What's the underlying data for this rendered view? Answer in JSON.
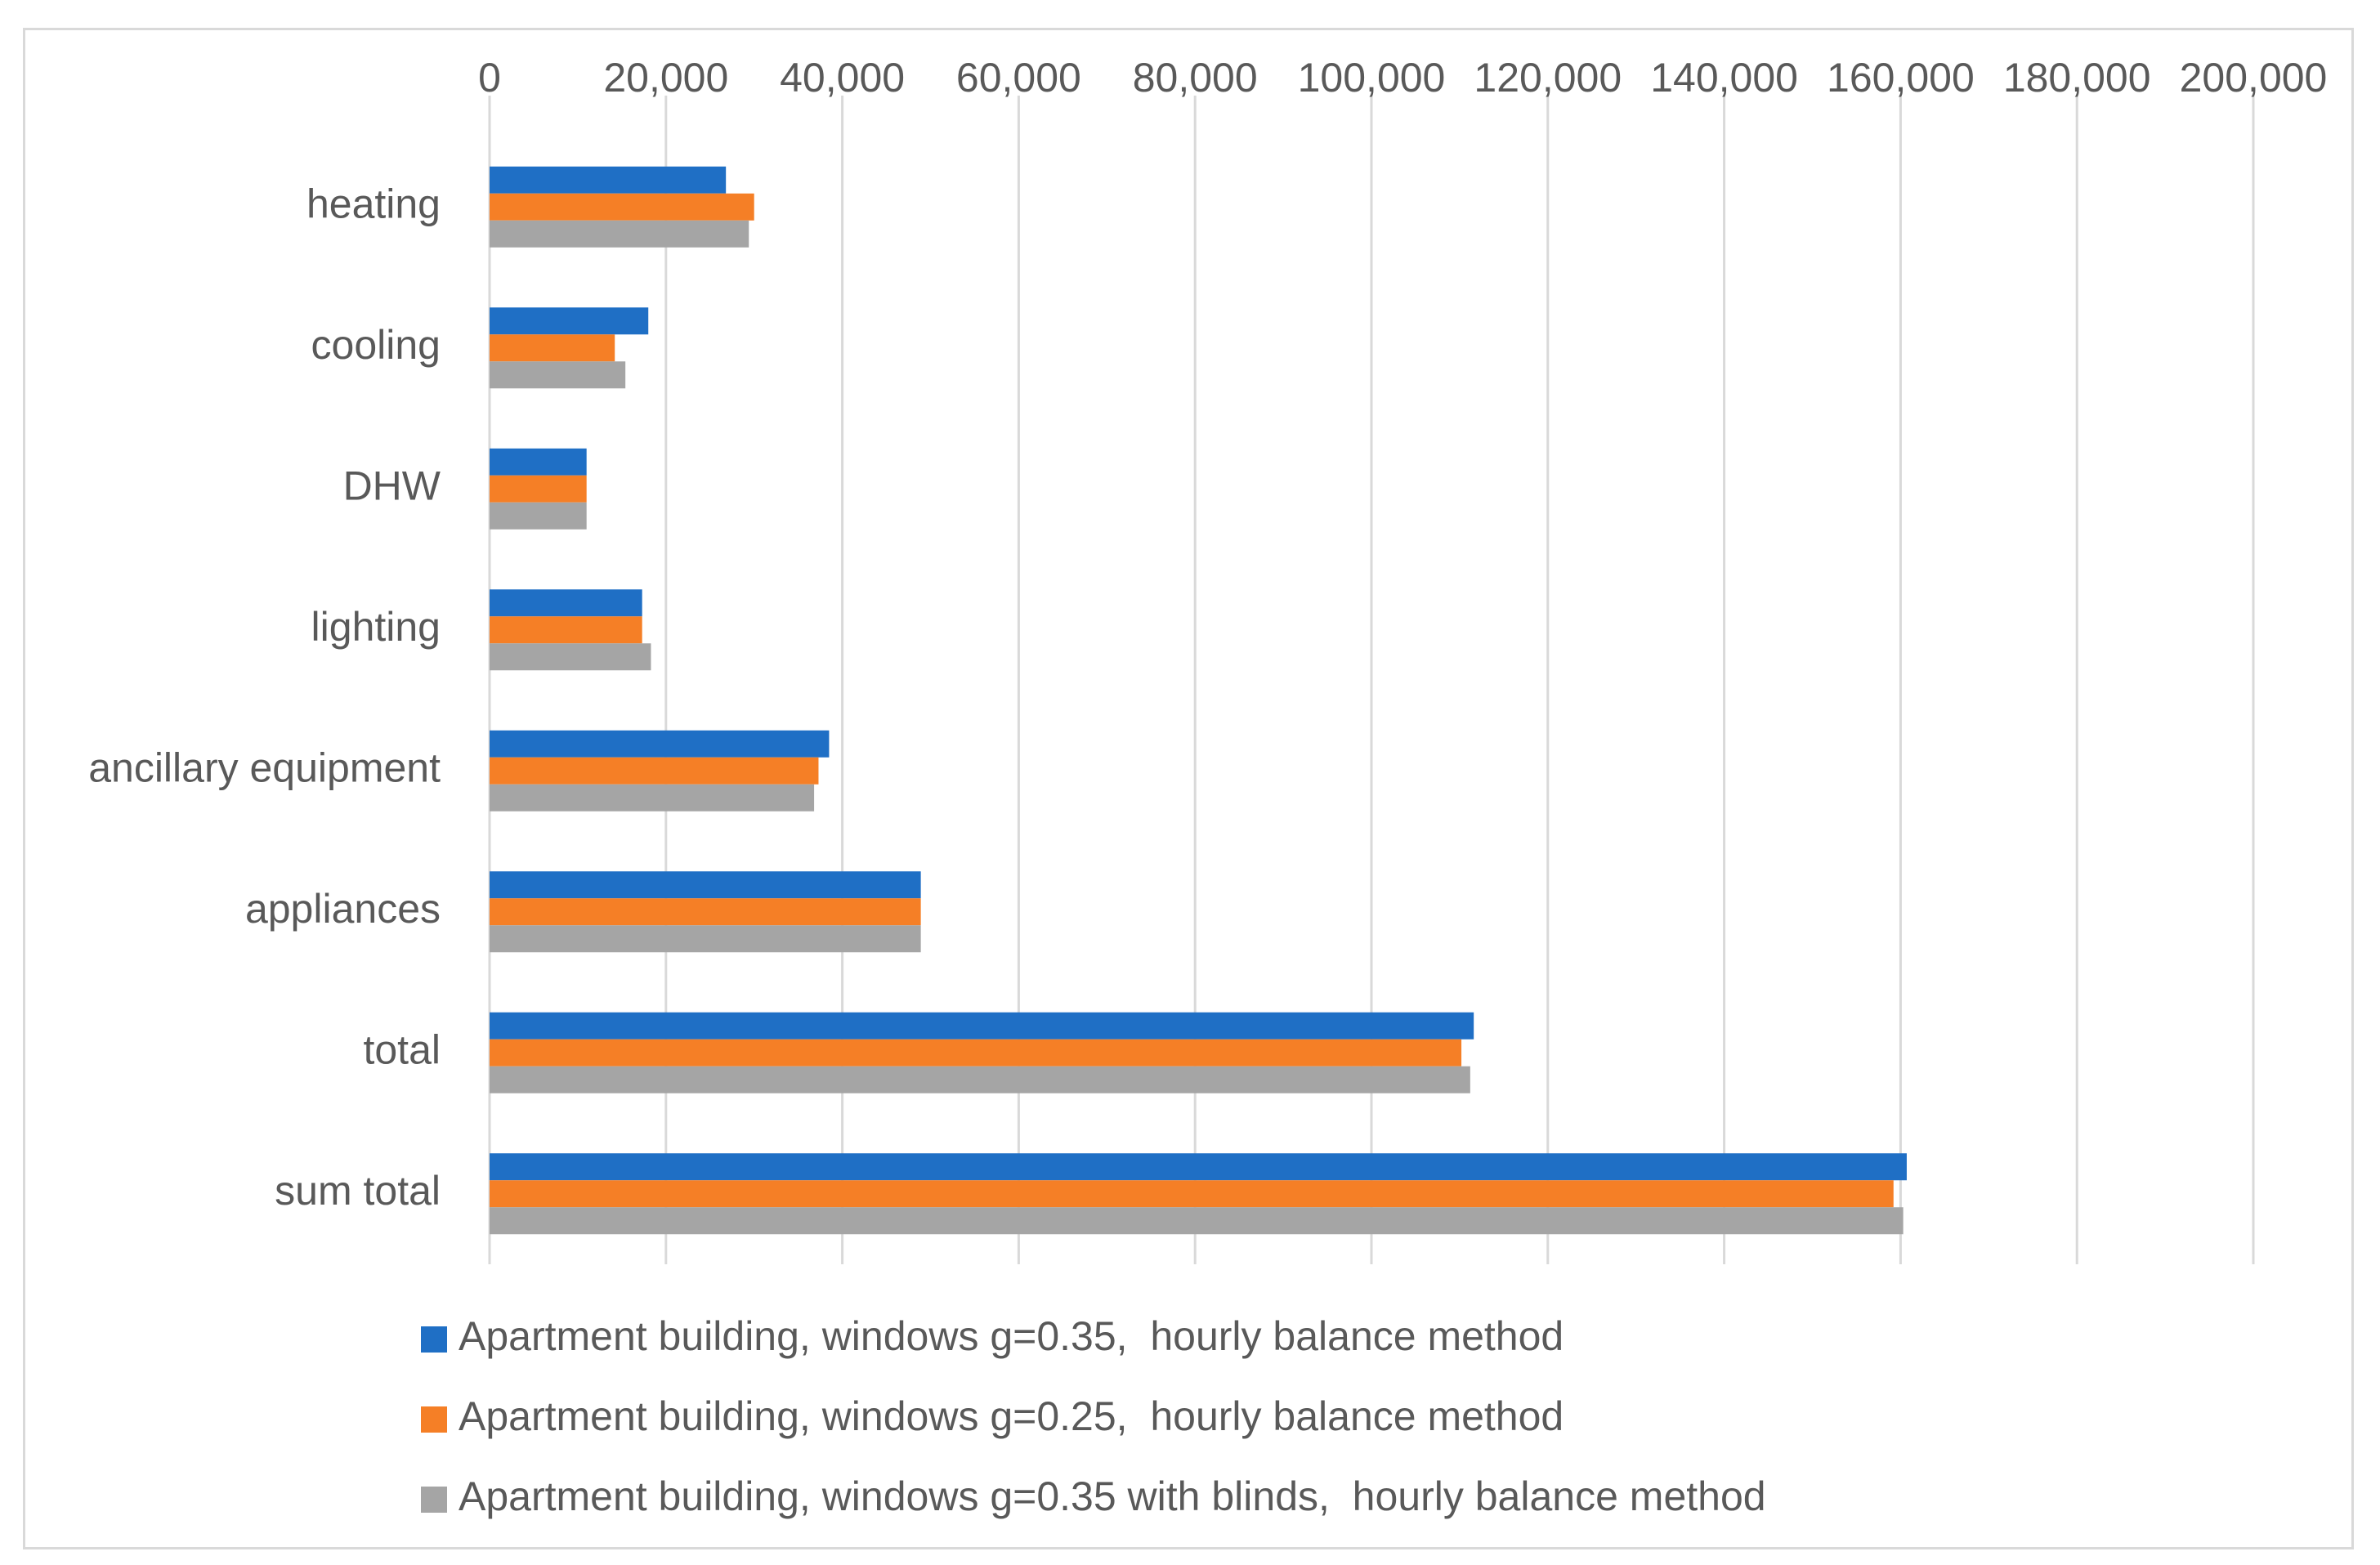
{
  "chart_data": {
    "type": "bar",
    "orientation": "horizontal",
    "title": "",
    "xlabel": "",
    "ylabel": "",
    "xlim": [
      0,
      200000
    ],
    "x_ticks": [
      "0",
      "20,000",
      "40,000",
      "60,000",
      "80,000",
      "100,000",
      "120,000",
      "140,000",
      "160,000",
      "180,000",
      "200,000"
    ],
    "x_axis_position": "top",
    "grid": true,
    "legend_position": "bottom",
    "categories": [
      "heating",
      "cooling",
      "DHW",
      "lighting",
      "ancillary equipment",
      "appliances",
      "total",
      "sum total"
    ],
    "series": [
      {
        "name": "Apartment building, windows g=0.35,  hourly balance method",
        "color": "#1f6fc5",
        "values": [
          26800,
          18000,
          11000,
          17300,
          38500,
          48900,
          111600,
          160700
        ]
      },
      {
        "name": "Apartment building, windows g=0.25,  hourly balance method",
        "color": "#f57f26",
        "values": [
          30000,
          14200,
          11000,
          17300,
          37300,
          48900,
          110200,
          159200
        ]
      },
      {
        "name": "Apartment building, windows g=0.35 with blinds,  hourly balance method",
        "color": "#a5a5a5",
        "values": [
          29400,
          15400,
          11000,
          18300,
          36800,
          48900,
          111200,
          160300
        ]
      }
    ]
  }
}
